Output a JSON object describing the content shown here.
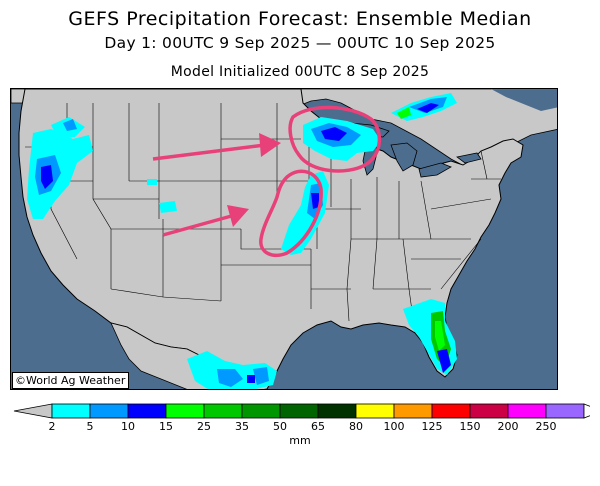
{
  "title": "GEFS Precipitation Forecast: Ensemble Median",
  "subtitle": "Day 1: 00UTC 9 Sep 2025 — 00UTC 10 Sep 2025",
  "initialized": "Model Initialized 00UTC 8 Sep 2025",
  "credit": "©World Ag Weather",
  "colorbar": {
    "units": "mm",
    "ticks": [
      "2",
      "5",
      "10",
      "15",
      "25",
      "35",
      "50",
      "65",
      "80",
      "100",
      "125",
      "150",
      "200",
      "250"
    ],
    "colors": [
      "#00ffff",
      "#0099ff",
      "#0000ff",
      "#00ff00",
      "#00c800",
      "#009600",
      "#006400",
      "#003200",
      "#ffff00",
      "#ff9900",
      "#ff0000",
      "#cc0044",
      "#ff00ff",
      "#9966ff"
    ],
    "under_color": "#c8c8c8",
    "over_color": "#ffffff"
  },
  "map": {
    "ocean_color": "#4d6d8e",
    "land_color": "#c8c8c8",
    "annotation_color": "#e8417a"
  }
}
